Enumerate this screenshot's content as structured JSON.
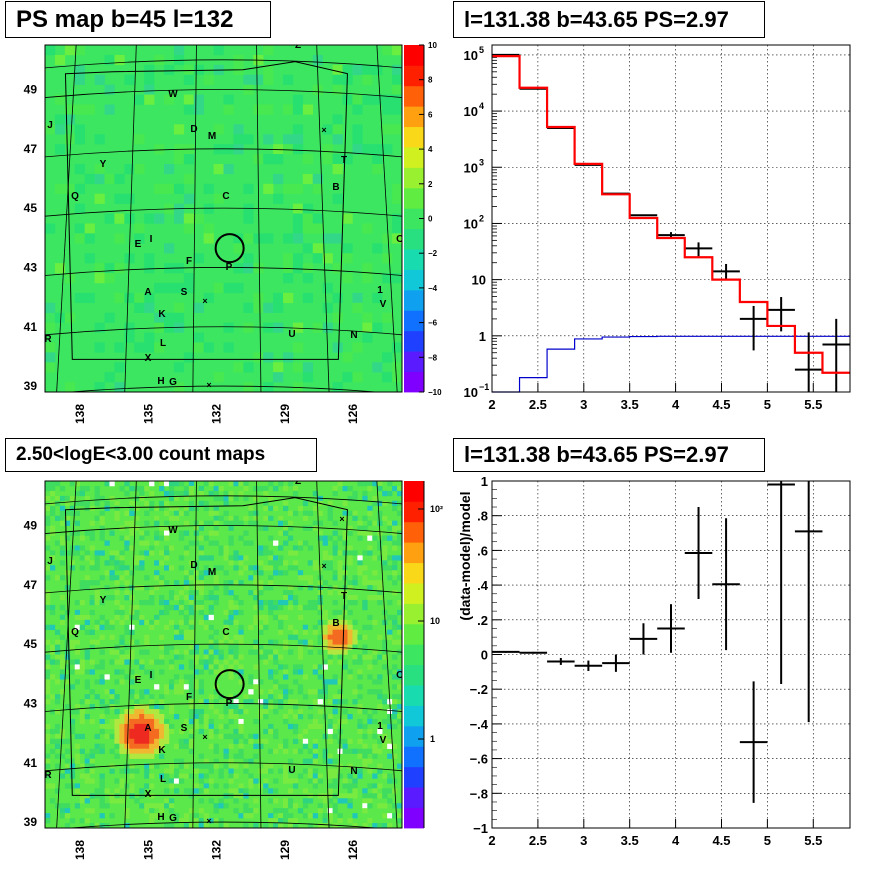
{
  "panels": {
    "ps_map": {
      "title": "PS map b=45 l=132",
      "lon_ticks": [
        "138",
        "135",
        "132",
        "129",
        "126"
      ],
      "lat_ticks": [
        "49",
        "47",
        "45",
        "43",
        "41",
        "39"
      ],
      "colorbar_ticks": [
        "10",
        "8",
        "6",
        "4",
        "2",
        "0",
        "−2",
        "−4",
        "−6",
        "−8",
        "−10"
      ]
    },
    "spectrum": {
      "title": "l=131.38 b=43.65 PS=2.97"
    },
    "count_map": {
      "title": "2.50<logE<3.00 count maps",
      "lon_ticks": [
        "138",
        "135",
        "132",
        "129",
        "126"
      ],
      "lat_ticks": [
        "49",
        "47",
        "45",
        "43",
        "41",
        "39"
      ],
      "colorbar_ticks": [
        "10²",
        "10",
        "1"
      ]
    },
    "residual": {
      "title": "l=131.38 b=43.65 PS=2.97",
      "ylabel": "(data-model)/model"
    }
  },
  "source_labels": [
    "Z",
    "W",
    "J",
    "D",
    "M",
    "Y",
    "T",
    "B",
    "Q",
    "C",
    "O",
    "E",
    "I",
    "F",
    "P",
    "A",
    "S",
    "K",
    "1",
    "V",
    "R",
    "L",
    "U",
    "N",
    "X",
    "H",
    "G"
  ],
  "colors": {
    "red_model": "#ff0000",
    "blue_bg": "#0000cc",
    "data": "#000000",
    "map_green": "#3ce660"
  },
  "chart_data": [
    {
      "type": "heatmap",
      "title": "PS map b=45 l=132",
      "xlabel": "",
      "ylabel": "",
      "x_range": [
        139.5,
        123.8
      ],
      "y_range": [
        38.8,
        50.5
      ],
      "colorbar_range": [
        -10,
        10
      ],
      "typical_value": 0.5,
      "circle_center": [
        131.38,
        43.65
      ]
    },
    {
      "type": "line",
      "title": "l=131.38 b=43.65 PS=2.97",
      "xlabel": "",
      "ylabel": "",
      "y_scale": "log",
      "xlim": [
        2,
        5.9
      ],
      "ylim": [
        0.1,
        150000
      ],
      "grid": true,
      "bin_edges": [
        2.0,
        2.3,
        2.6,
        2.9,
        3.2,
        3.5,
        3.8,
        4.1,
        4.4,
        4.7,
        5.0,
        5.3,
        5.6,
        5.9
      ],
      "series": [
        {
          "name": "",
          "role": "data",
          "x": [
            2.15,
            2.45,
            2.75,
            3.05,
            3.35,
            3.65,
            3.95,
            4.25,
            4.55,
            4.85,
            5.15,
            5.45,
            5.75
          ],
          "y": [
            100000,
            25000,
            5000,
            1100,
            340,
            140,
            62,
            36,
            14,
            2.0,
            2.9,
            0.25,
            0.7
          ],
          "yerr_low": [
            0,
            0,
            0,
            0,
            0,
            0,
            8,
            10,
            4,
            1.45,
            1.7,
            0.2,
            0.6
          ],
          "yerr_high": [
            0,
            0,
            0,
            0,
            0,
            0,
            8,
            10,
            5,
            1.4,
            2.0,
            0.9,
            1.3
          ]
        },
        {
          "name": "",
          "role": "model",
          "values": [
            95000,
            26000,
            5200,
            1150,
            330,
            125,
            55,
            25,
            10,
            4.0,
            1.5,
            0.5,
            0.22
          ]
        },
        {
          "name": "",
          "role": "background",
          "values": [
            0.1,
            0.18,
            0.58,
            0.88,
            0.95,
            0.97,
            0.98,
            0.98,
            0.98,
            0.98,
            0.98,
            0.98,
            0.98
          ]
        }
      ]
    },
    {
      "type": "heatmap",
      "title": "2.50<logE<3.00 count maps",
      "x_range": [
        139.5,
        123.8
      ],
      "y_range": [
        38.8,
        50.5
      ],
      "colorbar_scale": "log",
      "hotspots": [
        {
          "label": "A",
          "lon": 135.4,
          "lat": 42.1
        },
        {
          "label": "B",
          "lon": 126.7,
          "lat": 45.3
        }
      ]
    },
    {
      "type": "scatter",
      "title": "l=131.38 b=43.65 PS=2.97",
      "xlabel": "",
      "ylabel": "(data-model)/model",
      "xlim": [
        2,
        5.9
      ],
      "ylim": [
        -1,
        1
      ],
      "grid": true,
      "x": [
        2.15,
        2.45,
        2.75,
        3.05,
        3.35,
        3.65,
        3.95,
        4.25,
        4.55,
        4.85,
        5.15,
        5.45
      ],
      "y": [
        0.015,
        0.01,
        -0.04,
        -0.065,
        -0.05,
        0.09,
        0.15,
        0.585,
        0.405,
        -0.505,
        0.98,
        0.71
      ],
      "yerr": [
        0.005,
        0.005,
        0.02,
        0.03,
        0.05,
        0.09,
        0.14,
        0.265,
        0.38,
        0.35,
        1.15,
        1.1
      ]
    }
  ]
}
